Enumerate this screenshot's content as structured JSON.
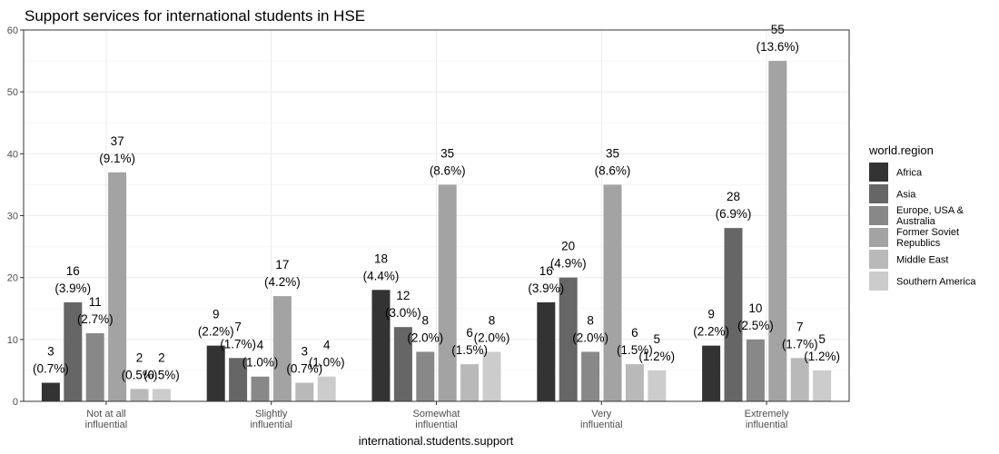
{
  "chart_data": {
    "type": "bar",
    "title": "Support services for international students in HSE",
    "xlabel": "international.students.support",
    "ylabel": "",
    "ylim": [
      0,
      60
    ],
    "yticks": [
      0,
      10,
      20,
      30,
      40,
      50,
      60
    ],
    "grid": true,
    "legend_title": "world.region",
    "legend_position": "right",
    "categories": [
      [
        "Not at all",
        "influential"
      ],
      [
        "Slightly",
        "influential"
      ],
      [
        "Somewhat",
        "influential"
      ],
      [
        "Very",
        "influential"
      ],
      [
        "Extremely",
        "influential"
      ]
    ],
    "series": [
      {
        "name": [
          "Africa"
        ],
        "color": "#333333",
        "values": [
          3,
          9,
          18,
          16,
          9
        ],
        "percents": [
          "(0.7%)",
          "(2.2%)",
          "(4.4%)",
          "(3.9%)",
          "(2.2%)"
        ]
      },
      {
        "name": [
          "Asia"
        ],
        "color": "#666666",
        "values": [
          16,
          7,
          12,
          20,
          28
        ],
        "percents": [
          "(3.9%)",
          "(1.7%)",
          "(3.0%)",
          "(4.9%)",
          "(6.9%)"
        ]
      },
      {
        "name": [
          "Europe, USA &",
          "Australia"
        ],
        "color": "#888888",
        "values": [
          11,
          4,
          8,
          8,
          10
        ],
        "percents": [
          "(2.7%)",
          "(1.0%)",
          "(2.0%)",
          "(2.0%)",
          "(2.5%)"
        ]
      },
      {
        "name": [
          "Former Soviet",
          "Republics"
        ],
        "color": "#a3a3a3",
        "values": [
          37,
          17,
          35,
          35,
          55
        ],
        "percents": [
          "(9.1%)",
          "(4.2%)",
          "(8.6%)",
          "(8.6%)",
          "(13.6%)"
        ]
      },
      {
        "name": [
          "Middle East"
        ],
        "color": "#b9b9b9",
        "values": [
          2,
          3,
          6,
          6,
          7
        ],
        "percents": [
          "(0.5%)",
          "(0.7%)",
          "(1.5%)",
          "(1.5%)",
          "(1.7%)"
        ]
      },
      {
        "name": [
          "Southern America"
        ],
        "color": "#cccccc",
        "values": [
          2,
          4,
          8,
          5,
          5
        ],
        "percents": [
          "(0.5%)",
          "(1.0%)",
          "(2.0%)",
          "(1.2%)",
          "(1.2%)"
        ]
      }
    ]
  }
}
